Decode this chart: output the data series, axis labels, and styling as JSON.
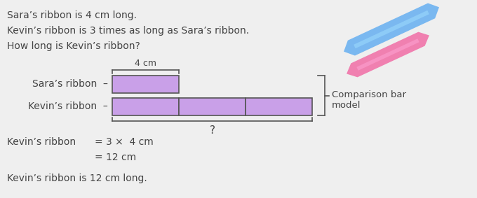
{
  "background_color": "#efefef",
  "text_color": "#444444",
  "bar_color": "#c9a0e8",
  "bar_border_color": "#555555",
  "problem_text_lines": [
    "Sara’s ribbon is 4 cm long.",
    "Kevin’s ribbon is 3 times as long as Sara’s ribbon.",
    "How long is Kevin’s ribbon?"
  ],
  "label_sara": "Sara’s ribbon",
  "label_kevin": "Kevin’s ribbon",
  "label_4cm": "4 cm",
  "label_question": "?",
  "comparison_label_line1": "Comparison bar",
  "comparison_label_line2": "model",
  "solution_label": "Kevin’s ribbon",
  "solution_eq1": "= 3 ×  4 cm",
  "solution_eq2": "= 12 cm",
  "conclusion": "Kevin’s ribbon is 12 cm long.",
  "blue_ribbon_color": "#7ab8f0",
  "pink_ribbon_color": "#f080b0"
}
